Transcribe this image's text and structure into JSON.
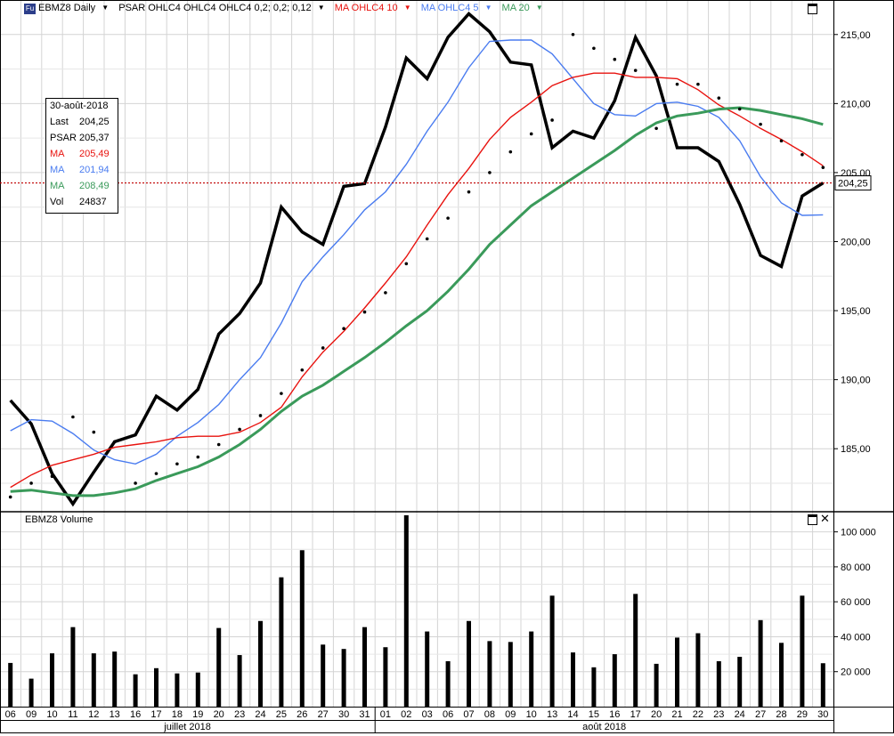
{
  "header": {
    "badge": "Fu",
    "symbol": "EBMZ8 Daily",
    "psar_label": "PSAR OHLC4 OHLC4 OHLC4 0,2; 0,2; 0,12",
    "ma10_label": "MA OHLC4 10",
    "ma5_label": "MA OHLC4 5",
    "ma20_label": "MA 20"
  },
  "colors": {
    "price": "#000000",
    "psar": "#000000",
    "ma10": "#e8130f",
    "ma5": "#4a7cf0",
    "ma20": "#3a9a5a",
    "last_line": "#c00000"
  },
  "info": {
    "date": "30-août-2018",
    "rows": [
      {
        "label": "Last",
        "value": "204,25",
        "color": "#000000"
      },
      {
        "label": "PSAR",
        "value": "205,37",
        "color": "#000000"
      },
      {
        "label": "MA",
        "value": "205,49",
        "color": "#e8130f"
      },
      {
        "label": "MA",
        "value": "201,94",
        "color": "#4a7cf0"
      },
      {
        "label": "MA",
        "value": "208,49",
        "color": "#3a9a5a"
      },
      {
        "label": "Vol",
        "value": "24837",
        "color": "#000000"
      }
    ]
  },
  "volume_title": "EBMZ8 Volume",
  "chart_data": {
    "type": "line",
    "x": [
      "06",
      "09",
      "10",
      "11",
      "12",
      "13",
      "16",
      "17",
      "18",
      "19",
      "20",
      "23",
      "24",
      "25",
      "26",
      "27",
      "30",
      "31",
      "01",
      "02",
      "03",
      "06",
      "07",
      "08",
      "09",
      "10",
      "13",
      "14",
      "15",
      "16",
      "17",
      "20",
      "21",
      "22",
      "23",
      "24",
      "27",
      "28",
      "29",
      "30"
    ],
    "months": [
      {
        "label": "juillet 2018",
        "from": 0,
        "to": 17
      },
      {
        "label": "août 2018",
        "from": 18,
        "to": 39
      }
    ],
    "ylim": [
      180.5,
      217.5
    ],
    "yticks": [
      185,
      190,
      195,
      200,
      205,
      210,
      215
    ],
    "ytick_labels": [
      "185,00",
      "190,00",
      "195,00",
      "200,00",
      "205,00",
      "210,00",
      "215,00"
    ],
    "last_value": 204.25,
    "last_label": "204,25",
    "series": [
      {
        "key": "price",
        "values": [
          188.5,
          186.8,
          183.2,
          181.0,
          183.3,
          185.5,
          186.0,
          188.8,
          187.8,
          189.3,
          193.3,
          194.8,
          197.0,
          202.5,
          200.7,
          199.8,
          204.0,
          204.2,
          208.3,
          213.3,
          211.8,
          214.8,
          216.5,
          215.2,
          213.0,
          212.8,
          206.8,
          208.0,
          207.5,
          210.2,
          214.8,
          212.0,
          206.8,
          206.8,
          205.8,
          202.7,
          199.0,
          198.2,
          203.3,
          204.25
        ]
      },
      {
        "key": "ma5",
        "values": [
          186.3,
          187.1,
          187.0,
          186.1,
          184.9,
          184.2,
          183.9,
          184.6,
          185.9,
          186.9,
          188.2,
          190.0,
          191.6,
          194.1,
          197.1,
          198.9,
          200.5,
          202.3,
          203.6,
          205.6,
          208.0,
          210.1,
          212.6,
          214.5,
          214.6,
          214.6,
          213.6,
          211.8,
          210.0,
          209.2,
          209.1,
          210.0,
          210.1,
          209.8,
          209.0,
          207.3,
          204.7,
          202.8,
          201.9,
          201.94
        ]
      },
      {
        "key": "ma10",
        "values": [
          182.2,
          183.1,
          183.8,
          184.2,
          184.6,
          185.1,
          185.3,
          185.5,
          185.8,
          185.9,
          185.9,
          186.2,
          186.9,
          188.0,
          190.2,
          192.0,
          193.5,
          195.2,
          197.0,
          198.9,
          201.2,
          203.4,
          205.3,
          207.4,
          209.0,
          210.1,
          211.3,
          211.9,
          212.2,
          212.2,
          211.9,
          211.9,
          211.8,
          211.0,
          209.9,
          209.1,
          208.2,
          207.4,
          206.5,
          205.49
        ]
      },
      {
        "key": "ma20",
        "values": [
          181.9,
          182.0,
          181.8,
          181.6,
          181.6,
          181.8,
          182.1,
          182.7,
          183.2,
          183.7,
          184.4,
          185.3,
          186.4,
          187.7,
          188.8,
          189.6,
          190.6,
          191.6,
          192.7,
          193.9,
          195.0,
          196.4,
          198.0,
          199.8,
          201.2,
          202.6,
          203.6,
          204.6,
          205.6,
          206.6,
          207.7,
          208.6,
          209.1,
          209.3,
          209.6,
          209.7,
          209.5,
          209.2,
          208.9,
          208.49
        ]
      },
      {
        "key": "psar",
        "values": [
          181.5,
          182.5,
          183.0,
          187.3,
          186.2,
          185.5,
          182.5,
          183.2,
          183.9,
          184.4,
          185.3,
          186.4,
          187.4,
          189.0,
          190.7,
          192.3,
          193.7,
          194.9,
          196.3,
          198.4,
          200.2,
          201.7,
          203.6,
          205.0,
          206.5,
          207.8,
          208.8,
          215.0,
          214.0,
          213.2,
          212.4,
          208.2,
          211.4,
          211.4,
          210.4,
          209.6,
          208.5,
          207.3,
          206.3,
          205.37
        ]
      }
    ],
    "volume": {
      "ylim": [
        0,
        110000
      ],
      "yticks": [
        20000,
        40000,
        60000,
        80000,
        100000
      ],
      "ytick_labels": [
        "20 000",
        "40 000",
        "60 000",
        "80 000",
        "100 000"
      ],
      "values": [
        25000,
        16000,
        30500,
        45500,
        30500,
        31500,
        18500,
        22000,
        19000,
        19500,
        45000,
        29500,
        49000,
        74000,
        89500,
        35500,
        33000,
        45500,
        34000,
        109500,
        43000,
        26000,
        49000,
        37500,
        37000,
        43000,
        63500,
        31000,
        22500,
        30000,
        64500,
        24500,
        39500,
        42000,
        26000,
        28500,
        49500,
        36500,
        63500,
        24837
      ]
    }
  }
}
